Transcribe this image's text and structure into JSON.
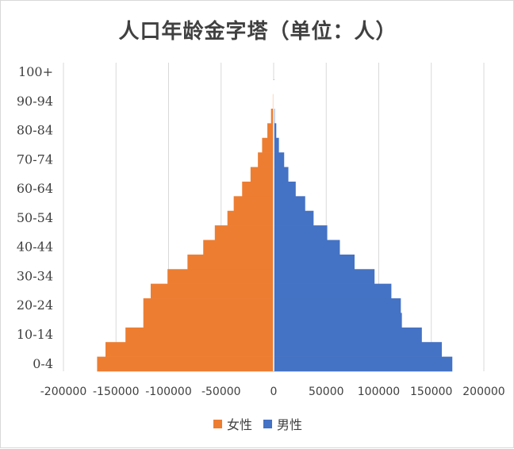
{
  "chart_data": {
    "type": "bar",
    "orientation": "horizontal",
    "title": "人口年龄金字塔（单位：人）",
    "categories": [
      "0-4",
      "5-9",
      "10-14",
      "15-19",
      "20-24",
      "25-29",
      "30-34",
      "35-39",
      "40-44",
      "45-49",
      "50-54",
      "55-59",
      "60-64",
      "65-69",
      "70-74",
      "75-79",
      "80-84",
      "85-89",
      "90-94",
      "95-99",
      "100+"
    ],
    "y_tick_labels": [
      "0-4",
      "10-14",
      "20-24",
      "30-34",
      "40-44",
      "50-54",
      "60-64",
      "70-74",
      "80-84",
      "90-94",
      "100+"
    ],
    "x_tick_labels": [
      "-200000",
      "-150000",
      "-100000",
      "-50000",
      "0",
      "50000",
      "100000",
      "150000",
      "200000"
    ],
    "xlim": [
      -200000,
      200000
    ],
    "grid": "vertical",
    "legend_position": "bottom",
    "series": [
      {
        "name": "女性",
        "color": "#ED7D31",
        "values": [
          -168000,
          -160000,
          -141000,
          -124000,
          -124000,
          -117000,
          -101000,
          -82000,
          -67000,
          -56000,
          -44000,
          -38000,
          -30000,
          -22000,
          -15000,
          -11000,
          -6000,
          -2500,
          -800,
          -200,
          0
        ]
      },
      {
        "name": "男性",
        "color": "#4472C4",
        "values": [
          170000,
          160000,
          141000,
          122000,
          121000,
          112000,
          96000,
          77000,
          63000,
          51000,
          38000,
          30000,
          21000,
          14000,
          10000,
          5000,
          2500,
          1000,
          300,
          100,
          0
        ]
      }
    ]
  }
}
